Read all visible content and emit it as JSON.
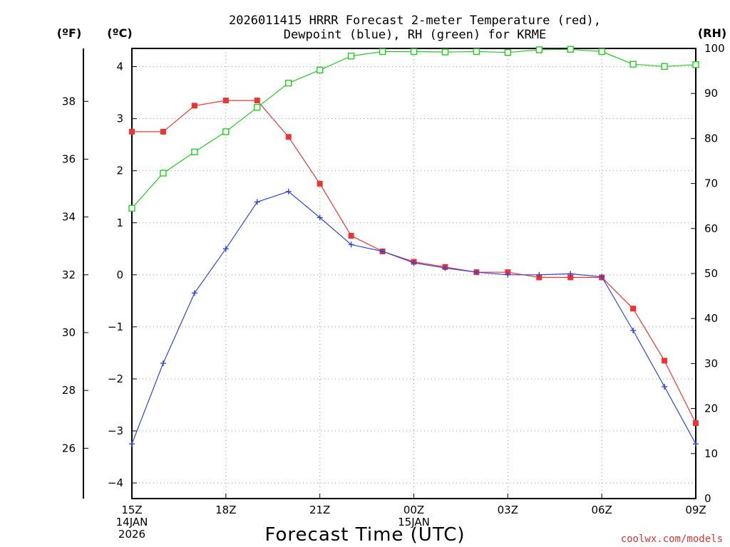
{
  "chart_data": {
    "type": "line",
    "title": [
      "2026011415 HRRR Forecast 2-meter Temperature (red),",
      "Dewpoint (blue), RH (green) for KRME"
    ],
    "xlabel": "Forecast Time (UTC)",
    "credit": "coolwx.com/models",
    "units": {
      "f": "(ºF)",
      "c": "(ºC)",
      "rh": "(RH)"
    },
    "x_hours": [
      0,
      1,
      2,
      3,
      4,
      5,
      6,
      7,
      8,
      9,
      10,
      11,
      12,
      13,
      14,
      15,
      16,
      17,
      18
    ],
    "x_ticks": [
      {
        "hour": 0,
        "lines": [
          "15Z",
          "14JAN",
          "2026"
        ]
      },
      {
        "hour": 3,
        "lines": [
          "18Z"
        ]
      },
      {
        "hour": 6,
        "lines": [
          "21Z"
        ]
      },
      {
        "hour": 9,
        "lines": [
          "00Z",
          "15JAN"
        ]
      },
      {
        "hour": 12,
        "lines": [
          "03Z"
        ]
      },
      {
        "hour": 15,
        "lines": [
          "06Z"
        ]
      },
      {
        "hour": 18,
        "lines": [
          "09Z"
        ]
      }
    ],
    "y_c": {
      "range": [
        -4.3,
        4.35
      ],
      "ticks": [
        "4",
        "3",
        "2",
        "1",
        "0",
        "−1",
        "−2",
        "−3",
        "−4"
      ],
      "tick_values": [
        4,
        3,
        2,
        1,
        0,
        -1,
        -2,
        -3,
        -4
      ]
    },
    "y_f": {
      "ticks": [
        "38",
        "36",
        "34",
        "32",
        "30",
        "28",
        "26"
      ],
      "tick_values": [
        38,
        36,
        34,
        32,
        30,
        28,
        26
      ]
    },
    "y_rh": {
      "range": [
        0,
        100
      ],
      "ticks": [
        "100",
        "90",
        "80",
        "70",
        "60",
        "50",
        "40",
        "30",
        "20",
        "10",
        "0"
      ],
      "tick_values": [
        100,
        90,
        80,
        70,
        60,
        50,
        40,
        30,
        20,
        10,
        0
      ]
    },
    "grid": true,
    "series": [
      {
        "axis": "c",
        "color": "#ee3333",
        "marker": "filled-square",
        "values": [
          2.75,
          2.75,
          3.25,
          3.35,
          3.35,
          2.65,
          1.75,
          0.75,
          0.45,
          0.25,
          0.15,
          0.05,
          0.05,
          -0.05,
          -0.05,
          -0.05,
          -0.65,
          -1.65,
          -2.85
        ]
      },
      {
        "axis": "c",
        "color": "#3344dd",
        "marker": "plus",
        "values": [
          -3.25,
          -1.7,
          -0.35,
          0.5,
          1.4,
          1.6,
          1.1,
          0.58,
          0.45,
          0.23,
          0.13,
          0.05,
          0.0,
          0.0,
          0.02,
          -0.04,
          -1.07,
          -2.15,
          -3.25
        ]
      },
      {
        "axis": "rh",
        "color": "#22cc22",
        "marker": "open-square",
        "values": [
          64.5,
          72.3,
          77.0,
          81.5,
          86.9,
          92.3,
          95.2,
          98.3,
          99.3,
          99.3,
          99.2,
          99.3,
          99.1,
          99.7,
          99.8,
          99.3,
          96.5,
          96.0,
          96.4
        ]
      }
    ]
  }
}
